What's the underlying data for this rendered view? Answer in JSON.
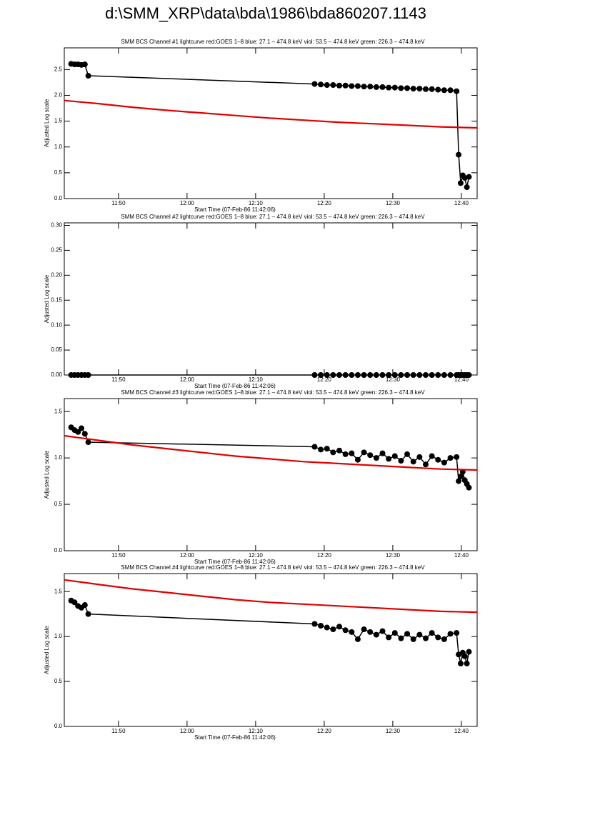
{
  "title": "d:\\SMM_XRP\\data\\bda\\1986\\bda860207.1143",
  "chart_data": [
    {
      "type": "line",
      "title": "SMM BCS Channel #1 lightcurve  red:GOES 1–8  blue: 27.1 – 474.8 keV  viol: 53.5 – 474.8 keV  green: 226.3 – 474.8 keV",
      "xlabel": "Start Time (07-Feb-86 11:42:06)",
      "ylabel": "Adjusted Log scale",
      "xlim": [
        702.1,
        762.3
      ],
      "xticks": [
        {
          "value": 710,
          "label": "11:50"
        },
        {
          "value": 720,
          "label": "12:00"
        },
        {
          "value": 730,
          "label": "12:10"
        },
        {
          "value": 740,
          "label": "12:20"
        },
        {
          "value": 750,
          "label": "12:30"
        },
        {
          "value": 760,
          "label": "12:40"
        }
      ],
      "ylim": [
        0,
        2.92
      ],
      "yticks": [
        {
          "value": 0,
          "label": "0.0"
        },
        0.5,
        {
          "value": 1,
          "label": "1.0"
        },
        1.5,
        {
          "value": 2,
          "label": "2.0"
        },
        2.5
      ],
      "series": [
        {
          "color": "#000000",
          "marker": "circle",
          "x": [
            703.1,
            703.6,
            704.1,
            704.6,
            705.1,
            705.6,
            738.6,
            739.5,
            740.4,
            741.3,
            742.2,
            743.1,
            744.0,
            744.9,
            745.8,
            746.7,
            747.6,
            748.5,
            749.4,
            750.3,
            751.2,
            752.1,
            753.0,
            753.9,
            754.8,
            755.7,
            756.6,
            757.5,
            758.4,
            759.3,
            759.6,
            759.9,
            760.2,
            760.5,
            760.8,
            761.1
          ],
          "values": [
            2.61,
            2.6,
            2.6,
            2.59,
            2.6,
            2.38,
            2.22,
            2.21,
            2.2,
            2.2,
            2.19,
            2.19,
            2.18,
            2.18,
            2.17,
            2.17,
            2.16,
            2.16,
            2.15,
            2.15,
            2.14,
            2.14,
            2.13,
            2.13,
            2.12,
            2.12,
            2.11,
            2.1,
            2.1,
            2.08,
            0.85,
            0.3,
            0.45,
            0.4,
            0.22,
            0.42
          ]
        },
        {
          "color": "#e00000",
          "x": [
            702.1,
            707,
            712,
            717,
            722,
            727,
            732,
            737,
            742,
            747,
            752,
            757,
            762.3
          ],
          "values": [
            1.9,
            1.84,
            1.77,
            1.71,
            1.66,
            1.61,
            1.56,
            1.52,
            1.48,
            1.45,
            1.42,
            1.39,
            1.37
          ]
        }
      ]
    },
    {
      "type": "line",
      "title": "SMM BCS Channel #2 lightcurve  red:GOES 1–8  blue: 27.1 – 474.8 keV  viol: 53.5 – 474.8 keV  green: 226.3 – 474.8 keV",
      "xlabel": "Start Time (07-Feb-86 11:42:06)",
      "ylabel": "Adjusted Log scale",
      "xlim": [
        702.1,
        762.3
      ],
      "xticks": [
        {
          "value": 710,
          "label": "11:50"
        },
        {
          "value": 720,
          "label": "12:00"
        },
        {
          "value": 730,
          "label": "12:10"
        },
        {
          "value": 740,
          "label": "12:20"
        },
        {
          "value": 750,
          "label": "12:30"
        },
        {
          "value": 760,
          "label": "12:40"
        }
      ],
      "ylim": [
        0,
        0.305
      ],
      "yticks": [
        {
          "value": 0,
          "label": "0.00"
        },
        0.05,
        {
          "value": 0.1,
          "label": "0.10"
        },
        0.15,
        {
          "value": 0.2,
          "label": "0.20"
        },
        0.25,
        {
          "value": 0.3,
          "label": "0.30"
        }
      ],
      "series": [
        {
          "color": "#000000",
          "marker": "circle",
          "x": [
            703.1,
            703.6,
            704.1,
            704.6,
            705.1,
            705.6,
            738.6,
            739.5,
            740.4,
            741.3,
            742.2,
            743.1,
            744.0,
            744.9,
            745.8,
            746.7,
            747.6,
            748.5,
            749.4,
            750.3,
            751.2,
            752.1,
            753.0,
            753.9,
            754.8,
            755.7,
            756.6,
            757.5,
            758.4,
            759.3,
            759.6,
            759.9,
            760.2,
            760.5,
            760.8,
            761.1
          ],
          "values": [
            0,
            0,
            0,
            0,
            0,
            0,
            0,
            0,
            0,
            0,
            0,
            0,
            0,
            0,
            0,
            0,
            0,
            0,
            0,
            0,
            0,
            0,
            0,
            0,
            0,
            0,
            0,
            0,
            0,
            0,
            0,
            0,
            0,
            0,
            0,
            0
          ]
        }
      ]
    },
    {
      "type": "line",
      "title": "SMM BCS Channel #3 lightcurve  red:GOES 1–8  blue: 27.1 – 474.8 keV  viol: 53.5 – 474.8 keV  green: 226.3 – 474.8 keV",
      "xlabel": "Start Time (07-Feb-86 11:42:06)",
      "ylabel": "Adjusted Log scale",
      "xlim": [
        702.1,
        762.3
      ],
      "xticks": [
        {
          "value": 710,
          "label": "11:50"
        },
        {
          "value": 720,
          "label": "12:00"
        },
        {
          "value": 730,
          "label": "12:10"
        },
        {
          "value": 740,
          "label": "12:20"
        },
        {
          "value": 750,
          "label": "12:30"
        },
        {
          "value": 760,
          "label": "12:40"
        }
      ],
      "ylim": [
        0,
        1.64
      ],
      "yticks": [
        {
          "value": 0,
          "label": "0.0"
        },
        0.5,
        {
          "value": 1,
          "label": "1.0"
        },
        1.5
      ],
      "series": [
        {
          "color": "#000000",
          "marker": "circle",
          "x": [
            703.1,
            703.6,
            704.1,
            704.6,
            705.1,
            705.6,
            738.6,
            739.5,
            740.4,
            741.3,
            742.2,
            743.1,
            744.0,
            744.9,
            745.8,
            746.7,
            747.6,
            748.5,
            749.4,
            750.3,
            751.2,
            752.1,
            753.0,
            753.9,
            754.8,
            755.7,
            756.6,
            757.5,
            758.4,
            759.3,
            759.6,
            759.9,
            760.2,
            760.5,
            760.8,
            761.1
          ],
          "values": [
            1.33,
            1.3,
            1.28,
            1.32,
            1.26,
            1.17,
            1.12,
            1.09,
            1.1,
            1.06,
            1.08,
            1.04,
            1.05,
            0.98,
            1.06,
            1.03,
            1.0,
            1.05,
            0.99,
            1.02,
            0.97,
            1.04,
            0.96,
            1.01,
            0.93,
            1.02,
            0.98,
            0.95,
            1.0,
            1.01,
            0.75,
            0.8,
            0.85,
            0.76,
            0.72,
            0.68
          ]
        },
        {
          "color": "#e00000",
          "x": [
            702.1,
            707,
            712,
            717,
            722,
            727,
            732,
            737,
            742,
            747,
            752,
            757,
            762.3
          ],
          "values": [
            1.24,
            1.19,
            1.14,
            1.1,
            1.06,
            1.02,
            0.99,
            0.96,
            0.94,
            0.92,
            0.9,
            0.88,
            0.87
          ]
        }
      ]
    },
    {
      "type": "line",
      "title": "SMM BCS Channel #4 lightcurve  red:GOES 1–8  blue: 27.1 – 474.8 keV  viol: 53.5 – 474.8 keV  green: 226.3 – 474.8 keV",
      "xlabel": "Start Time (07-Feb-86 11:42:06)",
      "ylabel": "Adjusted Log scale",
      "xlim": [
        702.1,
        762.3
      ],
      "xticks": [
        {
          "value": 710,
          "label": "11:50"
        },
        {
          "value": 720,
          "label": "12:00"
        },
        {
          "value": 730,
          "label": "12:10"
        },
        {
          "value": 740,
          "label": "12:20"
        },
        {
          "value": 750,
          "label": "12:30"
        },
        {
          "value": 760,
          "label": "12:40"
        }
      ],
      "ylim": [
        0,
        1.7
      ],
      "yticks": [
        {
          "value": 0,
          "label": "0.0"
        },
        0.5,
        {
          "value": 1,
          "label": "1.0"
        },
        1.5
      ],
      "series": [
        {
          "color": "#000000",
          "marker": "circle",
          "x": [
            703.1,
            703.6,
            704.1,
            704.6,
            705.1,
            705.6,
            738.6,
            739.5,
            740.4,
            741.3,
            742.2,
            743.1,
            744.0,
            744.9,
            745.8,
            746.7,
            747.6,
            748.5,
            749.4,
            750.3,
            751.2,
            752.1,
            753.0,
            753.9,
            754.8,
            755.7,
            756.6,
            757.5,
            758.4,
            759.3,
            759.6,
            759.9,
            760.2,
            760.5,
            760.8,
            761.1
          ],
          "values": [
            1.4,
            1.38,
            1.34,
            1.32,
            1.35,
            1.25,
            1.14,
            1.12,
            1.1,
            1.08,
            1.11,
            1.07,
            1.05,
            0.97,
            1.08,
            1.05,
            1.02,
            1.06,
            0.99,
            1.04,
            0.98,
            1.03,
            0.97,
            1.02,
            0.98,
            1.04,
            0.99,
            0.97,
            1.03,
            1.04,
            0.8,
            0.7,
            0.82,
            0.78,
            0.7,
            0.83
          ]
        },
        {
          "color": "#e00000",
          "x": [
            702.1,
            707,
            712,
            717,
            722,
            727,
            732,
            737,
            742,
            747,
            752,
            757,
            762.3
          ],
          "values": [
            1.63,
            1.58,
            1.53,
            1.49,
            1.45,
            1.41,
            1.38,
            1.36,
            1.34,
            1.32,
            1.3,
            1.28,
            1.27
          ]
        }
      ]
    }
  ]
}
